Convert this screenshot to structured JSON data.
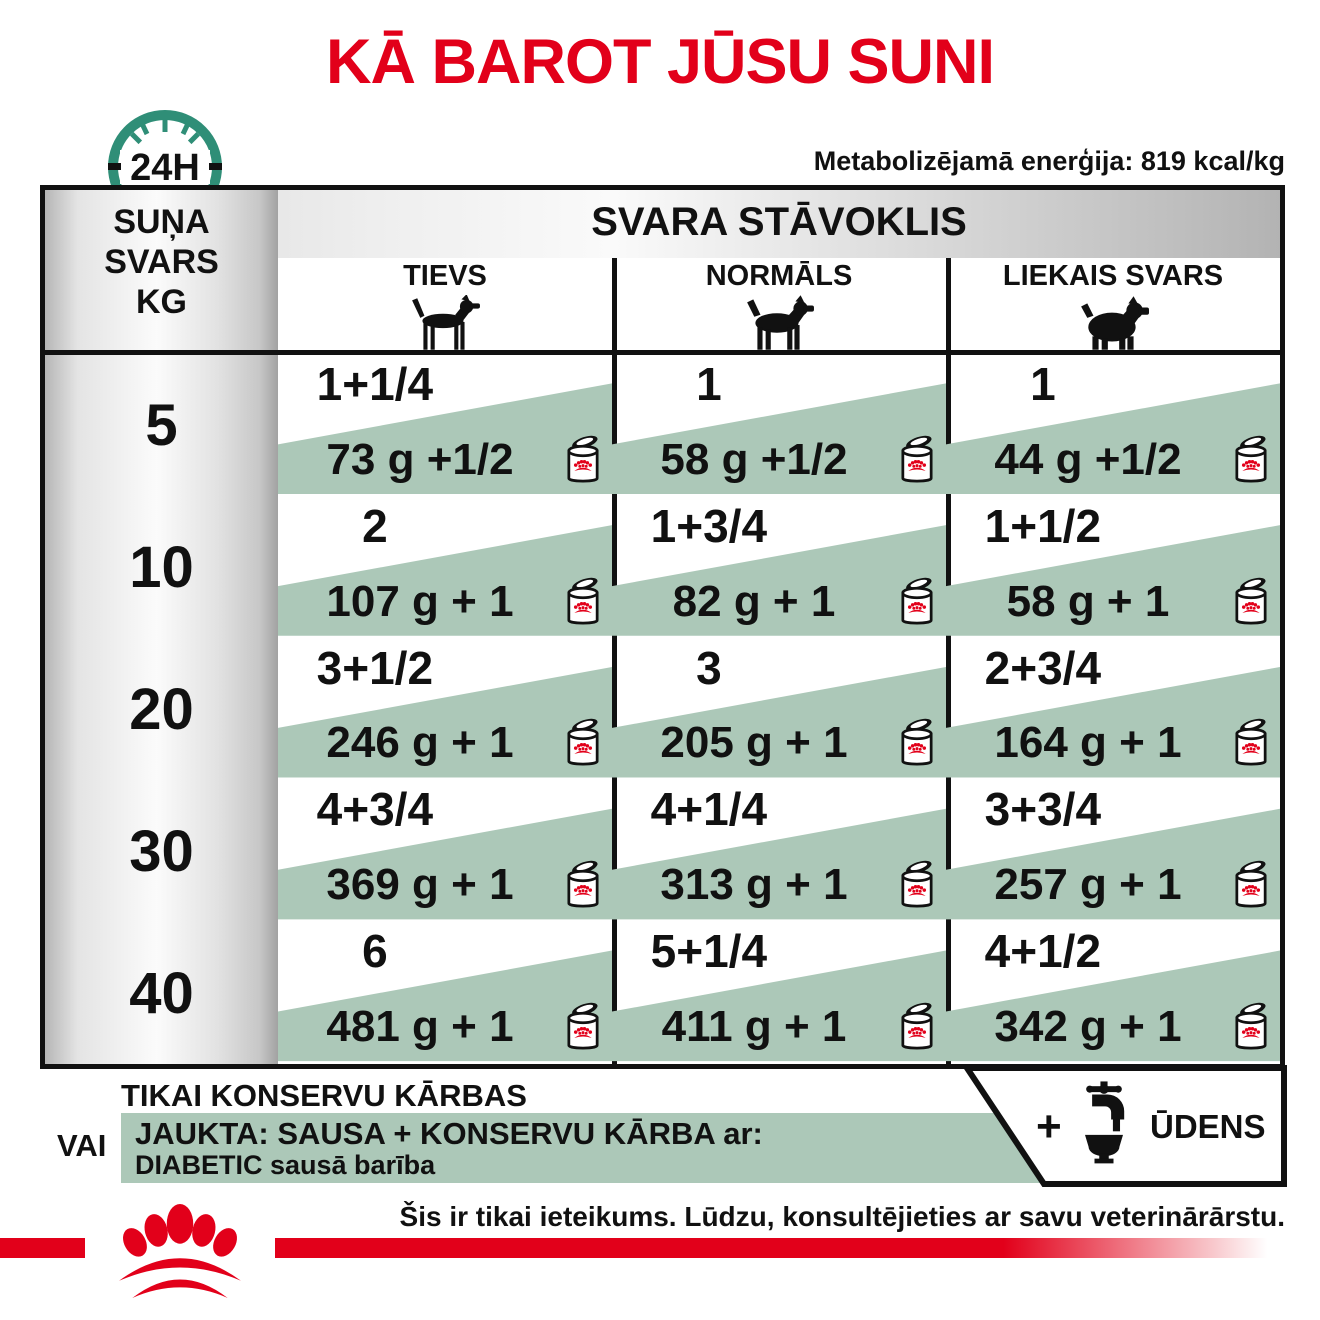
{
  "page": {
    "title": "KĀ BAROT JŪSU SUNI"
  },
  "header": {
    "energy_note": "Metabolizējamā enerģija: 819 kcal/kg",
    "clock_label": "24H"
  },
  "table": {
    "weight_header": "SUŅA\nSVARS\nKG",
    "status_header": "SVARA STĀVOKLIS",
    "columns": [
      {
        "label": "TIEVS",
        "icon": "thin-dog-icon"
      },
      {
        "label": "NORMĀLS",
        "icon": "normal-dog-icon"
      },
      {
        "label": "LIEKAIS SVARS",
        "icon": "overweight-dog-icon"
      }
    ],
    "rows": [
      {
        "weight": "5",
        "cells": [
          {
            "cans_only": "1+1/4",
            "mixed": "73 g +1/2"
          },
          {
            "cans_only": "1",
            "mixed": "58 g +1/2"
          },
          {
            "cans_only": "1",
            "mixed": "44 g +1/2"
          }
        ]
      },
      {
        "weight": "10",
        "cells": [
          {
            "cans_only": "2",
            "mixed": "107 g + 1"
          },
          {
            "cans_only": "1+3/4",
            "mixed": "82 g + 1"
          },
          {
            "cans_only": "1+1/2",
            "mixed": "58 g + 1"
          }
        ]
      },
      {
        "weight": "20",
        "cells": [
          {
            "cans_only": "3+1/2",
            "mixed": "246 g + 1"
          },
          {
            "cans_only": "3",
            "mixed": "205 g + 1"
          },
          {
            "cans_only": "2+3/4",
            "mixed": "164 g + 1"
          }
        ]
      },
      {
        "weight": "30",
        "cells": [
          {
            "cans_only": "4+3/4",
            "mixed": "369 g + 1"
          },
          {
            "cans_only": "4+1/4",
            "mixed": "313 g + 1"
          },
          {
            "cans_only": "3+3/4",
            "mixed": "257 g + 1"
          }
        ]
      },
      {
        "weight": "40",
        "cells": [
          {
            "cans_only": "6",
            "mixed": "481 g + 1"
          },
          {
            "cans_only": "5+1/4",
            "mixed": "411 g + 1"
          },
          {
            "cans_only": "4+1/2",
            "mixed": "342 g + 1"
          }
        ]
      }
    ]
  },
  "legend": {
    "cans_only_label": "TIKAI KONSERVU KĀRBAS",
    "or_label": "VAI",
    "mixed_label": "JAUKTA: SAUSA + KONSERVU KĀRBA ar:",
    "mixed_sublabel": "DIABETIC sausā barība",
    "plus": "+",
    "water_label": "ŪDENS"
  },
  "footer": {
    "disclaimer": "Šis ir tikai ieteikums. Lūdzu, konsultējieties ar savu veterinārārstu."
  },
  "colors": {
    "brand_red": "#e2001a",
    "band_green": "#acc8b8",
    "clock_teal": "#2f8e77"
  }
}
